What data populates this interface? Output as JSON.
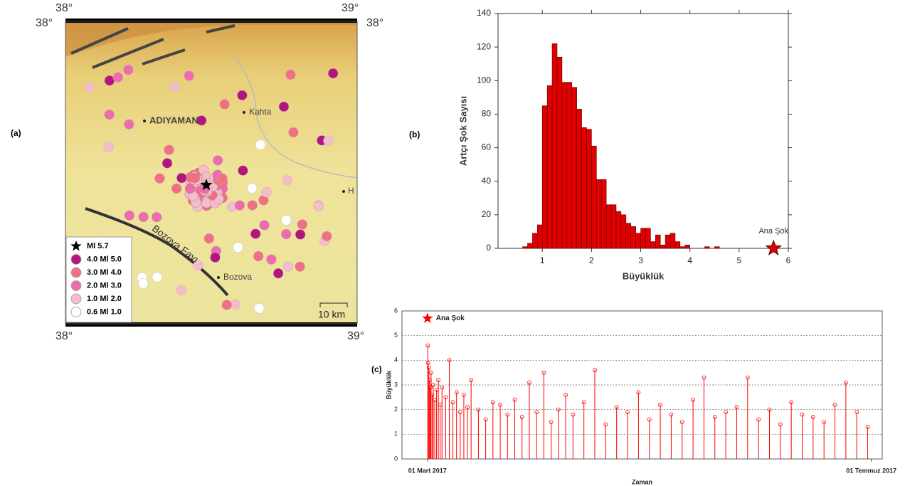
{
  "panels": {
    "a": "(a)",
    "b": "(b)",
    "c": "(c)"
  },
  "map": {
    "coords": {
      "top_left": "38°",
      "top_right": "39°",
      "left": "38°",
      "right": "38°",
      "bottom_left": "38°",
      "bottom_right": "39°"
    },
    "places": {
      "city": "ADIYAMAN",
      "kahta": "Kahta",
      "h": "H",
      "bozova": "Bozova",
      "fault": "Bozova Fayı",
      "scale": "10 km"
    },
    "legend": [
      {
        "label": "Ml 5.7",
        "color": "#000000"
      },
      {
        "label": "4.0 Ml 5.0",
        "color": "#b3157c"
      },
      {
        "label": "3.0 Ml 4.0",
        "color": "#f06f82"
      },
      {
        "label": "2.0 Ml 3.0",
        "color": "#ec6cad"
      },
      {
        "label": "1.0 Ml 2.0",
        "color": "#f5bccb"
      },
      {
        "label": "0.6 Ml 1.0",
        "color": "#ffffff"
      }
    ]
  },
  "chart_data": [
    {
      "type": "histogram",
      "xlabel": "Büyüklük",
      "ylabel": "Artçı Şok Sayısı",
      "color": "#e00000",
      "bins": [
        0.6,
        0.7,
        0.8,
        0.9,
        1.0,
        1.1,
        1.2,
        1.3,
        1.4,
        1.5,
        1.6,
        1.7,
        1.8,
        1.9,
        2.0,
        2.1,
        2.2,
        2.3,
        2.4,
        2.5,
        2.6,
        2.7,
        2.8,
        2.9,
        3.0,
        3.1,
        3.2,
        3.3,
        3.4,
        3.5,
        3.6,
        3.7,
        3.8,
        3.9,
        4.0,
        4.1,
        4.2,
        4.3,
        4.4,
        4.5,
        4.6
      ],
      "values": [
        1,
        3,
        9,
        14,
        85,
        97,
        122,
        114,
        99,
        99,
        96,
        83,
        72,
        71,
        61,
        41,
        41,
        26,
        26,
        22,
        20,
        15,
        13,
        9,
        12,
        12,
        4,
        8,
        2,
        8,
        9,
        4,
        1,
        2,
        0,
        0,
        0,
        1,
        0,
        1
      ],
      "xlim": [
        0.1,
        6
      ],
      "xticks": [
        1,
        2,
        3,
        4,
        5,
        6
      ],
      "ylim": [
        0,
        140
      ],
      "yticks": [
        0,
        20,
        40,
        60,
        80,
        100,
        120,
        140
      ],
      "annotation": {
        "x": 5.7,
        "y": 0,
        "label": "Ana Şok"
      }
    },
    {
      "type": "stem",
      "xlabel": "Zaman",
      "ylabel": "Büyüklük",
      "color": "#ff0000",
      "grid": true,
      "x": [
        0.1,
        0.2,
        0.4,
        0.6,
        0.8,
        1,
        1.3,
        1.6,
        2,
        2.5,
        3,
        3.5,
        4,
        5,
        6,
        7,
        8,
        9,
        10,
        11,
        12,
        14,
        16,
        18,
        20,
        22,
        24,
        26,
        28,
        30,
        32,
        34,
        36,
        38,
        40,
        43,
        46,
        49,
        52,
        55,
        58,
        61,
        64,
        67,
        70,
        73,
        76,
        79,
        82,
        85,
        88,
        91,
        94,
        97,
        100,
        103,
        106,
        109,
        112,
        115,
        118,
        121
      ],
      "values": [
        4.6,
        3.9,
        3.7,
        3.2,
        2.9,
        3.5,
        2.6,
        3.0,
        2.4,
        2.8,
        3.2,
        2.2,
        2.9,
        2.5,
        4.0,
        2.3,
        2.7,
        1.9,
        2.6,
        2.1,
        3.2,
        2.0,
        1.6,
        2.3,
        2.2,
        1.8,
        2.4,
        1.7,
        3.1,
        1.9,
        3.5,
        1.5,
        2.0,
        2.6,
        1.8,
        2.3,
        3.6,
        1.4,
        2.1,
        1.9,
        2.7,
        1.6,
        2.2,
        1.8,
        1.5,
        2.4,
        3.3,
        1.7,
        1.9,
        2.1,
        3.3,
        1.6,
        2.0,
        1.4,
        2.3,
        1.8,
        1.7,
        1.5,
        2.2,
        3.1,
        1.9,
        1.3
      ],
      "xlim": [
        -7,
        125
      ],
      "xticks": [
        {
          "value": 0,
          "label": "01 Mart 2017"
        },
        {
          "value": 122,
          "label": "01 Temmuz 2017"
        }
      ],
      "ylim": [
        0,
        6
      ],
      "yticks": [
        0,
        1,
        2,
        3,
        4,
        5,
        6
      ],
      "annotation": {
        "x": 0,
        "y": 5.7,
        "label": "Ana Şok"
      }
    }
  ]
}
